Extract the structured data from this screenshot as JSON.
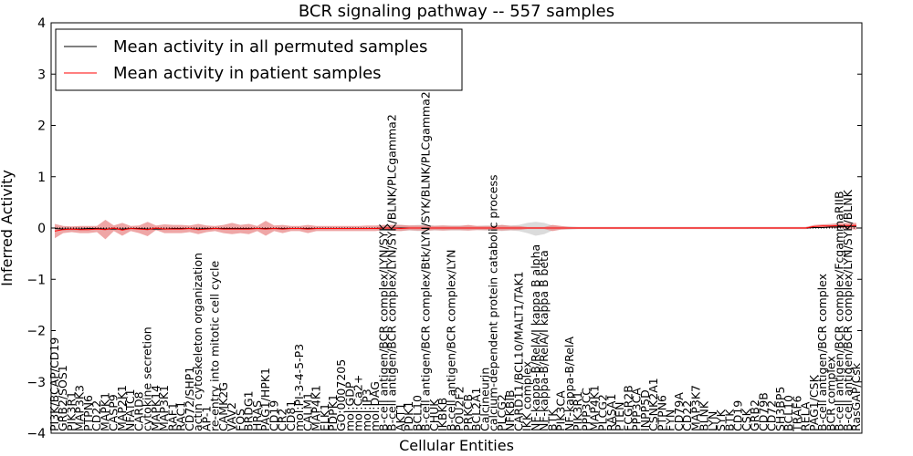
{
  "chart_data": {
    "type": "line",
    "title": "BCR signaling pathway -- 557 samples",
    "xlabel": "Cellular Entities",
    "ylabel": "Inferred Activity",
    "ylim": [
      -4,
      4
    ],
    "yticks": [
      4,
      3,
      2,
      1,
      0,
      -1,
      -2,
      -3,
      -4
    ],
    "ytick_labels": [
      "4",
      "3",
      "2",
      "1",
      "0",
      "−1",
      "−2",
      "−3",
      "−4"
    ],
    "grid": false,
    "legend_position": "top-left",
    "categories": [
      "PI3K/BCAP/CD19",
      "GRB2/SOS1",
      "PIK3R1",
      "MAP3K3",
      "PTPN6",
      "CD22",
      "MAPK1",
      "CASP9",
      "MAP2K1",
      "NFATC1",
      "CARD8",
      "cytokine secretion",
      "MAPK14",
      "MAP3K1",
      "RAF1",
      "RAC1",
      "CD72/SHP1",
      "actin cytoskeleton organization",
      "AP-1",
      "re-entry into mitotic cell cycle",
      "CAMK2G",
      "VAV2",
      "FOS",
      "BRDG1",
      "HRAS",
      "PAG1/HPK1",
      "CD19",
      "CR2",
      "CD81",
      "mol:PI-3-4-5-P3",
      "CALM1",
      "MAP4K1",
      "ELK1",
      "PDPK1",
      "GO:0007205",
      "mol:GDP",
      "mol:Ca2+",
      "mol:IP3",
      "mol:DAG",
      "B-cell antigen/BCR complex/LYN/SYK",
      "B-cell antigen/BCR complex/LYN/SYK/BLNK/PLCgamma2",
      "AKT1",
      "PDK1",
      "BCL10",
      "B-cell antigen/BCR complex/Btk/LYN/SYK/BLNK/PLCgamma2",
      "CHUK",
      "IKBKB",
      "B-cell antigen/BCR complex/LYN",
      "POU2F2",
      "PRKCB",
      "BCL2A1",
      "Calcineurin",
      "calcium-dependent protein catabolic process",
      "PLCG2",
      "NFKBIB",
      "CARD11/BCL10/MALT1/TAK1",
      "IKK complex",
      "NF-kappa-B/RelA/I kappa B alpha",
      "NF-kappa-B/RelA/I kappa B beta",
      "BTK",
      "PIK3CA",
      "NF-kappa-B/RelA",
      "PIK3R1",
      "PPP3CC",
      "MAP4K1",
      "PLCG2",
      "RASA1",
      "PTEN",
      "FCGR2B",
      "PPP3CA",
      "INPP5D",
      "CSNK2A1",
      "PTPN6",
      "FYN",
      "CD79A",
      "CD22",
      "MAP3K7",
      "BLNK",
      "LYN",
      "SYK",
      "BTK",
      "CD19",
      "CSK",
      "GRB2",
      "CD79B",
      "CD72",
      "SH3BP5",
      "BCL10",
      "TRAF6",
      "RELA",
      "PAG1/CSK",
      "B-cell antigen/BCR complex",
      "BCR complex",
      "B-cell antigen/BCR complex/FcgammaRIIB",
      "B-cell antigen/BCR complex/LYN/SYK/BLNK",
      "RasGAP/Csk"
    ],
    "series": [
      {
        "name": "Mean activity in all permuted samples",
        "color": "#000000",
        "values": [
          -0.01,
          -0.02,
          -0.02,
          -0.02,
          -0.01,
          -0.01,
          -0.02,
          -0.02,
          -0.02,
          -0.01,
          -0.01,
          -0.02,
          -0.02,
          -0.02,
          -0.01,
          -0.01,
          -0.01,
          -0.02,
          -0.01,
          -0.01,
          -0.01,
          -0.01,
          -0.01,
          -0.01,
          -0.01,
          -0.01,
          -0.01,
          -0.01,
          -0.01,
          -0.01,
          -0.01,
          -0.01,
          -0.01,
          -0.01,
          -0.01,
          -0.01,
          -0.01,
          -0.01,
          -0.01,
          0.0,
          0.0,
          0.0,
          0.0,
          0.0,
          0.0,
          0.0,
          0.0,
          0.0,
          0.0,
          0.0,
          0.0,
          0.0,
          0.0,
          0.0,
          0.0,
          0.0,
          0.0,
          0.0,
          0.0,
          0.0,
          0.0,
          0.0,
          0.0,
          0.0,
          0.0,
          0.0,
          0.0,
          0.0,
          0.0,
          0.0,
          0.0,
          0.0,
          0.0,
          0.0,
          0.0,
          0.0,
          0.0,
          0.0,
          0.0,
          0.0,
          0.0,
          0.0,
          0.0,
          0.0,
          0.0,
          0.0,
          0.0,
          0.0,
          0.0,
          0.0,
          0.01,
          0.01,
          0.02,
          0.02,
          0.03,
          0.03
        ],
        "lower": [
          -0.04,
          -0.05,
          -0.06,
          -0.05,
          -0.04,
          -0.04,
          -0.05,
          -0.05,
          -0.05,
          -0.04,
          -0.04,
          -0.05,
          -0.05,
          -0.05,
          -0.04,
          -0.04,
          -0.04,
          -0.05,
          -0.04,
          -0.04,
          -0.04,
          -0.04,
          -0.04,
          -0.04,
          -0.04,
          -0.04,
          -0.04,
          -0.04,
          -0.04,
          -0.04,
          -0.04,
          -0.04,
          -0.04,
          -0.04,
          -0.04,
          -0.04,
          -0.04,
          -0.04,
          -0.04,
          -0.05,
          -0.06,
          -0.06,
          -0.05,
          -0.06,
          -0.06,
          -0.05,
          -0.05,
          -0.05,
          -0.05,
          -0.05,
          -0.04,
          -0.05,
          -0.05,
          -0.06,
          -0.05,
          -0.06,
          -0.1,
          -0.15,
          -0.12,
          -0.05,
          -0.03,
          -0.03,
          -0.02,
          -0.02,
          -0.02,
          -0.02,
          -0.02,
          -0.02,
          -0.02,
          -0.02,
          -0.02,
          -0.02,
          -0.02,
          -0.02,
          -0.02,
          -0.02,
          -0.02,
          -0.02,
          -0.02,
          -0.02,
          -0.02,
          -0.02,
          -0.02,
          -0.02,
          -0.02,
          -0.02,
          -0.02,
          -0.02,
          -0.02,
          -0.02,
          -0.01,
          -0.01,
          0.0,
          0.0,
          0.0,
          0.0
        ],
        "upper": [
          0.03,
          0.02,
          0.02,
          0.02,
          0.02,
          0.02,
          0.01,
          0.02,
          0.02,
          0.02,
          0.02,
          0.01,
          0.02,
          0.02,
          0.02,
          0.02,
          0.02,
          0.02,
          0.02,
          0.02,
          0.02,
          0.02,
          0.02,
          0.02,
          0.02,
          0.02,
          0.02,
          0.02,
          0.02,
          0.02,
          0.02,
          0.02,
          0.02,
          0.02,
          0.02,
          0.02,
          0.02,
          0.02,
          0.02,
          0.05,
          0.06,
          0.06,
          0.05,
          0.06,
          0.06,
          0.05,
          0.05,
          0.05,
          0.05,
          0.05,
          0.04,
          0.05,
          0.05,
          0.06,
          0.05,
          0.06,
          0.1,
          0.12,
          0.1,
          0.05,
          0.03,
          0.03,
          0.02,
          0.02,
          0.02,
          0.02,
          0.02,
          0.02,
          0.02,
          0.02,
          0.02,
          0.02,
          0.02,
          0.02,
          0.02,
          0.02,
          0.02,
          0.02,
          0.02,
          0.02,
          0.02,
          0.02,
          0.02,
          0.02,
          0.02,
          0.02,
          0.02,
          0.02,
          0.02,
          0.02,
          0.03,
          0.03,
          0.04,
          0.04,
          0.05,
          0.05
        ]
      },
      {
        "name": "Mean activity in patient samples",
        "color": "#ff0000",
        "band_color": "#e88080",
        "values": [
          -0.06,
          -0.03,
          -0.02,
          -0.03,
          -0.03,
          -0.02,
          -0.03,
          0.0,
          -0.04,
          -0.01,
          -0.02,
          -0.03,
          0.0,
          -0.02,
          -0.02,
          -0.02,
          -0.01,
          -0.03,
          -0.02,
          -0.01,
          -0.02,
          -0.02,
          -0.02,
          -0.02,
          -0.01,
          -0.02,
          -0.01,
          -0.02,
          -0.01,
          -0.01,
          -0.02,
          -0.01,
          -0.01,
          -0.01,
          -0.01,
          -0.01,
          -0.01,
          -0.01,
          -0.01,
          0.0,
          0.0,
          -0.01,
          0.0,
          0.0,
          0.0,
          0.0,
          0.0,
          0.0,
          0.0,
          0.0,
          0.0,
          0.0,
          0.0,
          0.0,
          0.0,
          0.0,
          0.0,
          0.0,
          0.0,
          0.0,
          0.0,
          0.0,
          0.0,
          0.0,
          0.0,
          0.0,
          0.0,
          0.0,
          0.0,
          0.0,
          0.0,
          0.0,
          0.0,
          0.0,
          0.0,
          0.0,
          0.0,
          0.0,
          0.0,
          0.0,
          0.0,
          0.0,
          0.0,
          0.0,
          0.0,
          0.0,
          0.0,
          0.0,
          0.0,
          0.0,
          0.03,
          0.04,
          0.04,
          0.05,
          0.05,
          0.05
        ],
        "lower": [
          -0.2,
          -0.1,
          -0.08,
          -0.1,
          -0.1,
          -0.08,
          -0.22,
          -0.06,
          -0.15,
          -0.06,
          -0.1,
          -0.16,
          -0.04,
          -0.1,
          -0.1,
          -0.1,
          -0.08,
          -0.12,
          -0.08,
          -0.06,
          -0.1,
          -0.12,
          -0.1,
          -0.12,
          -0.06,
          -0.15,
          -0.06,
          -0.1,
          -0.06,
          -0.06,
          -0.1,
          -0.06,
          -0.06,
          -0.06,
          -0.06,
          -0.06,
          -0.06,
          -0.06,
          -0.06,
          -0.04,
          -0.05,
          -0.06,
          -0.04,
          -0.05,
          -0.05,
          -0.04,
          -0.05,
          -0.04,
          -0.04,
          -0.05,
          -0.04,
          -0.04,
          -0.04,
          -0.05,
          -0.04,
          -0.04,
          -0.02,
          -0.02,
          -0.02,
          -0.06,
          -0.03,
          -0.02,
          -0.02,
          -0.02,
          -0.02,
          -0.02,
          -0.02,
          -0.02,
          -0.02,
          -0.02,
          -0.02,
          -0.02,
          -0.02,
          -0.02,
          -0.02,
          -0.02,
          -0.02,
          -0.02,
          -0.02,
          -0.02,
          -0.02,
          -0.02,
          -0.02,
          -0.02,
          -0.02,
          -0.02,
          -0.02,
          -0.02,
          -0.02,
          -0.02,
          0.0,
          0.01,
          0.0,
          0.0,
          -0.02,
          -0.03
        ],
        "upper": [
          0.08,
          0.04,
          0.03,
          0.04,
          0.04,
          0.04,
          0.16,
          0.05,
          0.1,
          0.04,
          0.05,
          0.12,
          0.05,
          0.07,
          0.06,
          0.06,
          0.05,
          0.08,
          0.05,
          0.04,
          0.06,
          0.1,
          0.06,
          0.08,
          0.04,
          0.14,
          0.05,
          0.06,
          0.04,
          0.04,
          0.06,
          0.04,
          0.04,
          0.04,
          0.04,
          0.04,
          0.04,
          0.05,
          0.05,
          0.06,
          0.06,
          0.06,
          0.05,
          0.05,
          0.05,
          0.04,
          0.05,
          0.04,
          0.04,
          0.06,
          0.04,
          0.04,
          0.04,
          0.06,
          0.04,
          0.04,
          0.02,
          0.02,
          0.02,
          0.06,
          0.04,
          0.02,
          0.02,
          0.02,
          0.02,
          0.02,
          0.02,
          0.02,
          0.02,
          0.02,
          0.02,
          0.02,
          0.02,
          0.02,
          0.02,
          0.02,
          0.02,
          0.02,
          0.02,
          0.02,
          0.02,
          0.02,
          0.02,
          0.02,
          0.02,
          0.02,
          0.02,
          0.02,
          0.02,
          0.02,
          0.06,
          0.07,
          0.08,
          0.1,
          0.1,
          0.1
        ]
      }
    ]
  }
}
